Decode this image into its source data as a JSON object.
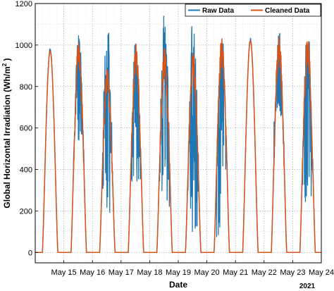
{
  "chart_data": {
    "type": "line",
    "xlabel": "Date",
    "ylabel": "Global Horizontal Irradiation (Wh/m",
    "ylabel_sup": "2",
    "ylabel_suffix": " )",
    "year_label": "2021",
    "x_tick_labels": [
      "May 15",
      "May 16",
      "May 17",
      "May 18",
      "May 19",
      "May 20",
      "May 21",
      "May 22",
      "May 23",
      "May 24"
    ],
    "x_range": [
      "2021-05-14 00:00",
      "2021-05-24 00:00"
    ],
    "ylim": [
      -50,
      1200
    ],
    "y_ticks": [
      0,
      200,
      400,
      600,
      800,
      1000,
      1200
    ],
    "grid": true,
    "grid_style": "dotted",
    "legend_position": "top-right",
    "series": [
      {
        "name": "Raw Data",
        "color": "#1f77b4"
      },
      {
        "name": "Cleaned Data",
        "color": "#d95319"
      }
    ],
    "daily_peaks": [
      {
        "date": "2021-05-14",
        "cleaned_peak": 970,
        "raw_max": 985,
        "raw_min": 970
      },
      {
        "date": "2021-05-15",
        "cleaned_peak": 980,
        "raw_max": 1060,
        "raw_min": 540
      },
      {
        "date": "2021-05-16",
        "cleaned_peak": 860,
        "raw_max": 1115,
        "raw_min": 190
      },
      {
        "date": "2021-05-17",
        "cleaned_peak": 960,
        "raw_max": 1005,
        "raw_min": 340
      },
      {
        "date": "2021-05-18",
        "cleaned_peak": 940,
        "raw_max": 1160,
        "raw_min": 200
      },
      {
        "date": "2021-05-19",
        "cleaned_peak": 930,
        "raw_max": 1160,
        "raw_min": 50
      },
      {
        "date": "2021-05-20",
        "cleaned_peak": 990,
        "raw_max": 1005,
        "raw_min": 60
      },
      {
        "date": "2021-05-21",
        "cleaned_peak": 1020,
        "raw_max": 1035,
        "raw_min": 1000
      },
      {
        "date": "2021-05-22",
        "cleaned_peak": 1010,
        "raw_max": 1055,
        "raw_min": 650
      },
      {
        "date": "2021-05-23",
        "cleaned_peak": 1000,
        "raw_max": 1015,
        "raw_min": 230
      }
    ],
    "sunrise_hour": 6,
    "sunset_hour": 19
  }
}
